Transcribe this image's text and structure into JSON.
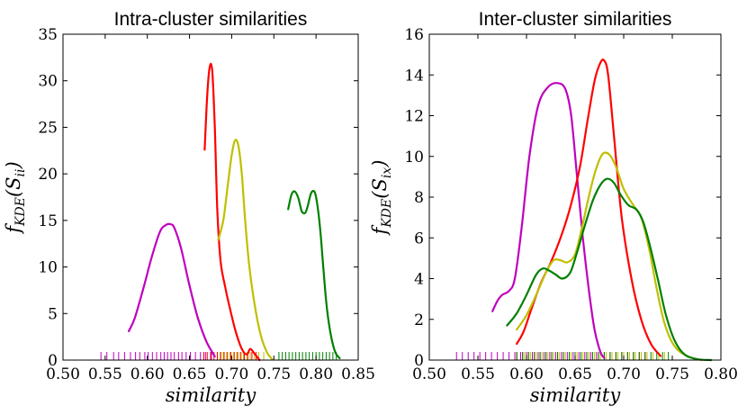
{
  "chart_data": [
    {
      "type": "line",
      "title": "Intra-cluster similarities",
      "xlabel": "similarity",
      "ylabel_main": "f",
      "ylabel_sub": "KDE",
      "ylabel_arg": "S",
      "ylabel_arg_sub": "ii",
      "xlim": [
        0.5,
        0.85
      ],
      "ylim": [
        0,
        35
      ],
      "xticks": [
        0.5,
        0.55,
        0.6,
        0.65,
        0.7,
        0.75,
        0.8,
        0.85
      ],
      "xtick_labels": [
        "0.50",
        "0.55",
        "0.60",
        "0.65",
        "0.70",
        "0.75",
        "0.80",
        "0.85"
      ],
      "yticks": [
        0,
        5,
        10,
        15,
        20,
        25,
        30,
        35
      ],
      "ytick_labels": [
        "0",
        "5",
        "10",
        "15",
        "20",
        "25",
        "30",
        "35"
      ],
      "series": [
        {
          "name": "magenta",
          "color": "#bf00bf",
          "x": [
            0.578,
            0.585,
            0.595,
            0.605,
            0.615,
            0.622,
            0.627,
            0.632,
            0.64,
            0.65,
            0.66,
            0.67,
            0.68
          ],
          "y": [
            3.1,
            4.5,
            7.6,
            11.0,
            13.8,
            14.5,
            14.6,
            14.2,
            12.0,
            8.0,
            4.5,
            2.0,
            0.4
          ],
          "rug": [
            0.545,
            0.552,
            0.56,
            0.566,
            0.573,
            0.58,
            0.586,
            0.591,
            0.597,
            0.601,
            0.606,
            0.611,
            0.616,
            0.62,
            0.624,
            0.628,
            0.632,
            0.637,
            0.641,
            0.646,
            0.651,
            0.657,
            0.663,
            0.669,
            0.676
          ]
        },
        {
          "name": "red",
          "color": "#ff0000",
          "x": [
            0.668,
            0.671,
            0.674,
            0.677,
            0.68,
            0.683,
            0.687,
            0.692,
            0.698,
            0.705,
            0.712,
            0.718,
            0.722,
            0.727,
            0.733
          ],
          "y": [
            22.6,
            28.5,
            31.5,
            31.0,
            25.0,
            16.0,
            10.5,
            8.0,
            5.5,
            3.0,
            1.2,
            0.6,
            1.2,
            0.7,
            0.0
          ],
          "rug": [
            0.667,
            0.671,
            0.675,
            0.679,
            0.683,
            0.687,
            0.691,
            0.695,
            0.699,
            0.703,
            0.707,
            0.711,
            0.715,
            0.719,
            0.724,
            0.729
          ]
        },
        {
          "name": "yellow",
          "color": "#bfbf00",
          "x": [
            0.684,
            0.69,
            0.695,
            0.7,
            0.704,
            0.708,
            0.712,
            0.716,
            0.721,
            0.728,
            0.735,
            0.742,
            0.748
          ],
          "y": [
            12.9,
            15.0,
            18.5,
            22.0,
            23.6,
            23.0,
            20.0,
            15.0,
            10.0,
            5.5,
            2.5,
            0.8,
            0.1
          ],
          "rug": [
            0.686,
            0.69,
            0.694,
            0.698,
            0.702,
            0.706,
            0.71,
            0.714,
            0.718,
            0.722,
            0.727,
            0.732,
            0.738
          ]
        },
        {
          "name": "green",
          "color": "#008000",
          "x": [
            0.767,
            0.771,
            0.775,
            0.779,
            0.783,
            0.787,
            0.79,
            0.794,
            0.798,
            0.801,
            0.805,
            0.809,
            0.813,
            0.818,
            0.823,
            0.828
          ],
          "y": [
            16.2,
            17.8,
            18.1,
            17.4,
            16.0,
            15.8,
            16.5,
            17.9,
            18.1,
            17.0,
            14.0,
            9.5,
            5.5,
            2.5,
            0.8,
            0.2
          ],
          "rug": [
            0.756,
            0.76,
            0.764,
            0.768,
            0.772,
            0.776,
            0.78,
            0.784,
            0.788,
            0.792,
            0.796,
            0.8,
            0.804,
            0.808,
            0.812,
            0.816,
            0.82,
            0.824
          ]
        }
      ]
    },
    {
      "type": "line",
      "title": "Inter-cluster similarities",
      "xlabel": "similarity",
      "ylabel_main": "f",
      "ylabel_sub": "KDE",
      "ylabel_arg": "S",
      "ylabel_arg_sub": "ix",
      "xlim": [
        0.5,
        0.8
      ],
      "ylim": [
        0,
        16
      ],
      "xticks": [
        0.5,
        0.55,
        0.6,
        0.65,
        0.7,
        0.75,
        0.8
      ],
      "xtick_labels": [
        "0.50",
        "0.55",
        "0.60",
        "0.65",
        "0.70",
        "0.75",
        "0.80"
      ],
      "yticks": [
        0,
        2,
        4,
        6,
        8,
        10,
        12,
        14,
        16
      ],
      "ytick_labels": [
        "0",
        "2",
        "4",
        "6",
        "8",
        "10",
        "12",
        "14",
        "16"
      ],
      "series": [
        {
          "name": "magenta",
          "color": "#bf00bf",
          "x": [
            0.565,
            0.57,
            0.575,
            0.582,
            0.588,
            0.595,
            0.603,
            0.612,
            0.622,
            0.632,
            0.64,
            0.646,
            0.652,
            0.658,
            0.664,
            0.67,
            0.676,
            0.68
          ],
          "y": [
            2.4,
            2.9,
            3.2,
            3.4,
            4.0,
            6.5,
            10.0,
            12.5,
            13.4,
            13.6,
            13.3,
            12.0,
            9.0,
            6.0,
            3.5,
            1.5,
            0.4,
            0.1
          ],
          "rug": [
            0.528,
            0.534,
            0.54,
            0.546,
            0.552,
            0.558,
            0.564,
            0.57,
            0.576,
            0.582,
            0.588,
            0.594,
            0.6,
            0.606,
            0.612,
            0.618,
            0.624,
            0.63,
            0.636,
            0.642,
            0.648,
            0.654,
            0.66,
            0.666,
            0.672
          ]
        },
        {
          "name": "red",
          "color": "#ff0000",
          "x": [
            0.59,
            0.597,
            0.605,
            0.615,
            0.625,
            0.635,
            0.645,
            0.655,
            0.663,
            0.67,
            0.676,
            0.68,
            0.684,
            0.69,
            0.698,
            0.708,
            0.718,
            0.728,
            0.738
          ],
          "y": [
            0.8,
            1.4,
            2.5,
            3.8,
            4.8,
            6.0,
            7.5,
            9.5,
            11.8,
            13.7,
            14.6,
            14.7,
            14.0,
            11.0,
            7.0,
            4.0,
            2.0,
            0.8,
            0.2
          ],
          "rug": [
            0.59,
            0.596,
            0.602,
            0.608,
            0.614,
            0.62,
            0.626,
            0.632,
            0.638,
            0.644,
            0.65,
            0.656,
            0.662,
            0.668,
            0.674,
            0.68,
            0.686,
            0.692,
            0.698,
            0.704,
            0.71,
            0.716,
            0.722
          ]
        },
        {
          "name": "yellow",
          "color": "#bfbf00",
          "x": [
            0.59,
            0.6,
            0.61,
            0.62,
            0.628,
            0.635,
            0.642,
            0.65,
            0.657,
            0.664,
            0.671,
            0.678,
            0.685,
            0.692,
            0.7,
            0.71,
            0.718,
            0.726,
            0.734,
            0.742,
            0.752,
            0.765,
            0.78
          ],
          "y": [
            1.5,
            2.2,
            3.2,
            4.3,
            4.9,
            4.9,
            4.8,
            5.2,
            6.5,
            8.0,
            9.3,
            10.1,
            10.1,
            9.5,
            8.4,
            7.6,
            7.0,
            5.5,
            3.5,
            1.8,
            0.7,
            0.2,
            0.0
          ],
          "rug": [
            0.598,
            0.604,
            0.61,
            0.616,
            0.622,
            0.628,
            0.634,
            0.64,
            0.646,
            0.652,
            0.658,
            0.664,
            0.67,
            0.676,
            0.682,
            0.688,
            0.694,
            0.7,
            0.706,
            0.712,
            0.718,
            0.724,
            0.73,
            0.736,
            0.742
          ]
        },
        {
          "name": "green",
          "color": "#008000",
          "x": [
            0.58,
            0.59,
            0.6,
            0.61,
            0.617,
            0.623,
            0.63,
            0.637,
            0.645,
            0.652,
            0.66,
            0.668,
            0.676,
            0.683,
            0.69,
            0.697,
            0.705,
            0.713,
            0.72,
            0.727,
            0.735,
            0.743,
            0.752,
            0.762,
            0.775,
            0.79
          ],
          "y": [
            1.7,
            2.3,
            3.2,
            4.2,
            4.5,
            4.4,
            4.2,
            4.0,
            4.3,
            5.3,
            6.6,
            7.8,
            8.6,
            8.9,
            8.7,
            8.1,
            7.6,
            7.4,
            6.8,
            5.6,
            4.0,
            2.3,
            1.0,
            0.3,
            0.05,
            0.0
          ],
          "rug": [
            0.59,
            0.596,
            0.602,
            0.608,
            0.614,
            0.62,
            0.626,
            0.632,
            0.638,
            0.644,
            0.65,
            0.656,
            0.662,
            0.668,
            0.674,
            0.68,
            0.686,
            0.692,
            0.698,
            0.704,
            0.71,
            0.716,
            0.722,
            0.728,
            0.734,
            0.74,
            0.746
          ]
        }
      ]
    }
  ]
}
